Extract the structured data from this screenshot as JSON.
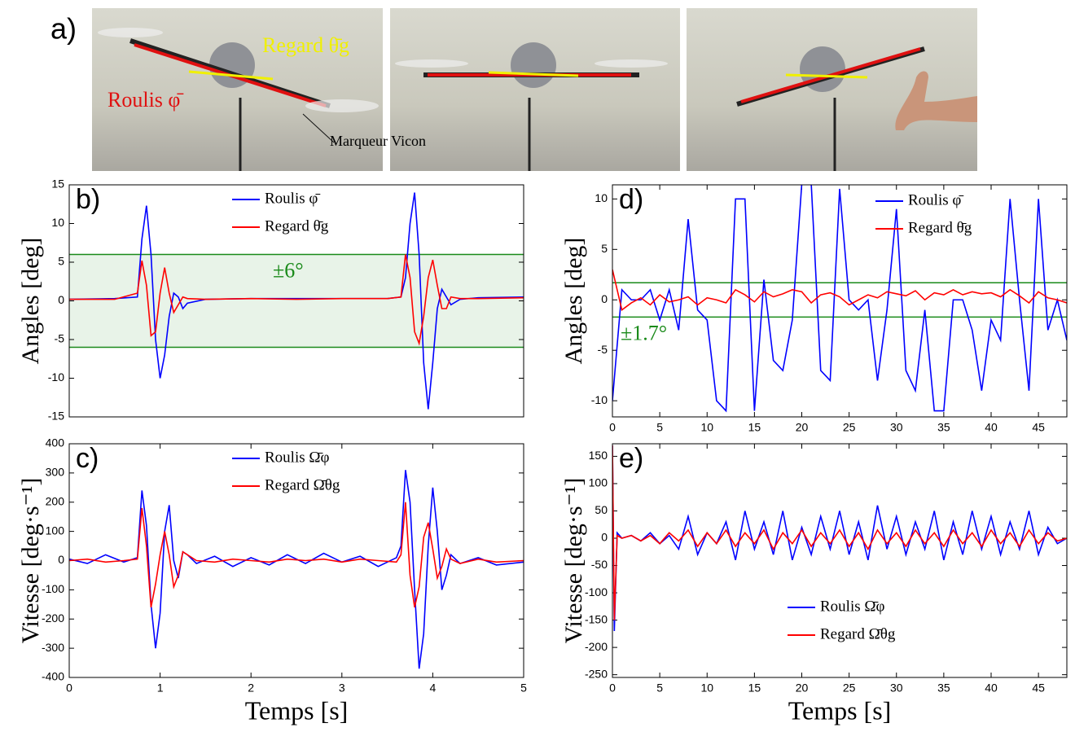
{
  "photo": {
    "label": "a)",
    "regard_label": "Regard θ̄g",
    "roulis_label": "Roulis φ̄",
    "marker_label": "Marqueur Vicon"
  },
  "chart_data": [
    {
      "type": "line",
      "panel_label": "b)",
      "ylabel": "Angles [deg]",
      "xlim": [
        0,
        5
      ],
      "ylim": [
        -15,
        15
      ],
      "yticks": [
        -15,
        -10,
        -5,
        0,
        5,
        10,
        15
      ],
      "band": {
        "values": [
          -6,
          6
        ],
        "fill": true,
        "color": "#1a8a1a"
      },
      "band_label": "±6°",
      "legend": "upper center",
      "x": [
        0,
        0.5,
        0.75,
        0.8,
        0.85,
        0.9,
        0.95,
        1,
        1.05,
        1.1,
        1.15,
        1.2,
        1.25,
        1.3,
        1.5,
        2,
        2.5,
        3,
        3.5,
        3.65,
        3.7,
        3.75,
        3.8,
        3.85,
        3.9,
        3.95,
        4,
        4.05,
        4.1,
        4.15,
        4.2,
        4.3,
        4.5,
        5
      ],
      "series": [
        {
          "name": "Roulis φ̄",
          "color": "#0000ff",
          "values": [
            0.2,
            0.3,
            0.5,
            8,
            12.3,
            6,
            -5,
            -10,
            -7,
            -2,
            1,
            0.5,
            -1,
            -0.3,
            0.2,
            0.3,
            0.3,
            0.3,
            0.3,
            0.5,
            3,
            10,
            14,
            6,
            -8,
            -14,
            -8,
            -1,
            1.5,
            0.5,
            -0.5,
            0.2,
            0.4,
            0.5
          ]
        },
        {
          "name": "Regard θ̄g",
          "color": "#ff0000",
          "values": [
            0.2,
            0.2,
            1,
            5.2,
            2,
            -4.5,
            -4,
            1,
            4.3,
            1,
            -1.5,
            -0.5,
            0.5,
            0.3,
            0.2,
            0.3,
            0.2,
            0.3,
            0.3,
            0.5,
            6,
            3,
            -4,
            -5.5,
            -2,
            3,
            5.3,
            2,
            -1,
            -1,
            0.5,
            0.3,
            0.3,
            0.4
          ]
        }
      ]
    },
    {
      "type": "line",
      "panel_label": "c)",
      "ylabel": "Vitesse [deg·s⁻¹]",
      "xlabel": "Temps [s]",
      "xlim": [
        0,
        5
      ],
      "xticks": [
        0,
        1,
        2,
        3,
        4,
        5
      ],
      "ylim": [
        -400,
        400
      ],
      "yticks": [
        -400,
        -300,
        -200,
        -100,
        0,
        100,
        200,
        300,
        400
      ],
      "legend": "upper center",
      "x": [
        0,
        0.2,
        0.4,
        0.6,
        0.75,
        0.8,
        0.85,
        0.9,
        0.95,
        1,
        1.05,
        1.1,
        1.15,
        1.2,
        1.25,
        1.3,
        1.4,
        1.6,
        1.8,
        2,
        2.2,
        2.4,
        2.6,
        2.8,
        3,
        3.2,
        3.4,
        3.6,
        3.65,
        3.7,
        3.75,
        3.8,
        3.85,
        3.9,
        3.95,
        4,
        4.05,
        4.1,
        4.15,
        4.2,
        4.3,
        4.5,
        4.7,
        5
      ],
      "series": [
        {
          "name": "Roulis Ω̄φ",
          "color": "#0000ff",
          "values": [
            5,
            -10,
            20,
            -5,
            10,
            240,
            120,
            -150,
            -300,
            -180,
            100,
            190,
            0,
            -60,
            30,
            20,
            -10,
            15,
            -20,
            10,
            -15,
            20,
            -10,
            25,
            -5,
            15,
            -20,
            10,
            50,
            310,
            200,
            -100,
            -370,
            -250,
            50,
            250,
            100,
            -100,
            -50,
            20,
            -10,
            10,
            -15,
            -5
          ]
        },
        {
          "name": "Regard Ω̄θg",
          "color": "#ff0000",
          "values": [
            0,
            5,
            -5,
            0,
            5,
            180,
            50,
            -160,
            -80,
            20,
            100,
            20,
            -90,
            -50,
            30,
            20,
            0,
            -5,
            5,
            0,
            -5,
            5,
            0,
            5,
            -5,
            5,
            0,
            -5,
            20,
            200,
            -50,
            -160,
            -90,
            80,
            130,
            40,
            -60,
            -20,
            40,
            5,
            -10,
            5,
            -5,
            0
          ]
        }
      ]
    },
    {
      "type": "line",
      "panel_label": "d)",
      "ylabel": "Angles [deg]",
      "xlim": [
        0,
        48
      ],
      "xticks": [
        0,
        5,
        10,
        15,
        20,
        25,
        30,
        35,
        40,
        45
      ],
      "ylim": [
        -11.6,
        11.4
      ],
      "yticks": [
        -10,
        -5,
        0,
        5,
        10
      ],
      "band": {
        "values": [
          -1.7,
          1.7
        ],
        "fill": false,
        "color": "#1a8a1a"
      },
      "band_label": "±1.7°",
      "legend": "upper right",
      "x": [
        0,
        1,
        2,
        3,
        4,
        5,
        6,
        7,
        8,
        9,
        10,
        11,
        12,
        13,
        14,
        15,
        16,
        17,
        18,
        19,
        20,
        21,
        22,
        23,
        24,
        25,
        26,
        27,
        28,
        29,
        30,
        31,
        32,
        33,
        34,
        35,
        36,
        37,
        38,
        39,
        40,
        41,
        42,
        43,
        44,
        45,
        46,
        47,
        48
      ],
      "series": [
        {
          "name": "Roulis φ̄",
          "color": "#0000ff",
          "values": [
            -10,
            1,
            0,
            0,
            1,
            -2,
            1,
            -3,
            8,
            -1,
            -2,
            -10,
            -11,
            10,
            10,
            -11,
            2,
            -6,
            -7,
            -2,
            11.5,
            11.5,
            -7,
            -8,
            11,
            0,
            -1,
            0,
            -8,
            -1,
            9,
            -7,
            -9,
            -1,
            -11,
            -11,
            0,
            0,
            -3,
            -9,
            -2,
            -4,
            10,
            0,
            -9,
            10,
            -3,
            0,
            -4
          ]
        },
        {
          "name": "Regard θ̄g",
          "color": "#ff0000",
          "values": [
            3,
            -1,
            -0.3,
            0.2,
            -0.5,
            0.5,
            -0.2,
            0,
            0.3,
            -0.5,
            0.2,
            0,
            -0.3,
            1,
            0.5,
            -0.2,
            0.8,
            0.3,
            0.6,
            1,
            0.8,
            -0.3,
            0.5,
            0.7,
            0.3,
            -0.5,
            0,
            0.5,
            0.2,
            0.8,
            0.6,
            0.4,
            0.9,
            0,
            0.7,
            0.5,
            1,
            0.5,
            0.8,
            0.6,
            0.7,
            0.3,
            1,
            0.4,
            -0.3,
            0.8,
            0.2,
            0,
            -0.3
          ]
        }
      ]
    },
    {
      "type": "line",
      "panel_label": "e)",
      "ylabel": "Vitesse [deg·s⁻¹]",
      "xlabel": "Temps [s]",
      "xlim": [
        0,
        48
      ],
      "xticks": [
        0,
        5,
        10,
        15,
        20,
        25,
        30,
        35,
        40,
        45
      ],
      "ylim": [
        -255,
        173
      ],
      "yticks": [
        -250,
        -200,
        -150,
        -100,
        -50,
        0,
        50,
        100,
        150
      ],
      "legend": "lower center",
      "x": [
        0,
        0.2,
        0.5,
        1,
        2,
        3,
        4,
        5,
        6,
        7,
        8,
        9,
        10,
        11,
        12,
        13,
        14,
        15,
        16,
        17,
        18,
        19,
        20,
        21,
        22,
        23,
        24,
        25,
        26,
        27,
        28,
        29,
        30,
        31,
        32,
        33,
        34,
        35,
        36,
        37,
        38,
        39,
        40,
        41,
        42,
        43,
        44,
        45,
        46,
        47,
        48
      ],
      "series": [
        {
          "name": "Roulis Ω̄φ",
          "color": "#0000ff",
          "values": [
            170,
            -170,
            10,
            0,
            5,
            -5,
            10,
            -10,
            5,
            -20,
            40,
            -30,
            10,
            -10,
            30,
            -40,
            50,
            -20,
            30,
            -30,
            50,
            -40,
            20,
            -30,
            40,
            -20,
            50,
            -30,
            30,
            -40,
            60,
            -20,
            40,
            -30,
            30,
            -20,
            50,
            -40,
            30,
            -30,
            50,
            -20,
            40,
            -30,
            30,
            -20,
            50,
            -30,
            20,
            -10,
            0
          ]
        },
        {
          "name": "Regard Ω̄θg",
          "color": "#ff0000",
          "values": [
            170,
            -150,
            5,
            0,
            5,
            -5,
            5,
            -10,
            10,
            -5,
            15,
            -15,
            10,
            -10,
            15,
            -15,
            10,
            -10,
            15,
            -20,
            10,
            -10,
            15,
            -15,
            10,
            -10,
            15,
            -15,
            10,
            -20,
            15,
            -10,
            10,
            -15,
            15,
            -10,
            10,
            -15,
            15,
            -10,
            10,
            -15,
            15,
            -10,
            10,
            -15,
            15,
            -10,
            10,
            -5,
            0
          ]
        }
      ]
    }
  ]
}
